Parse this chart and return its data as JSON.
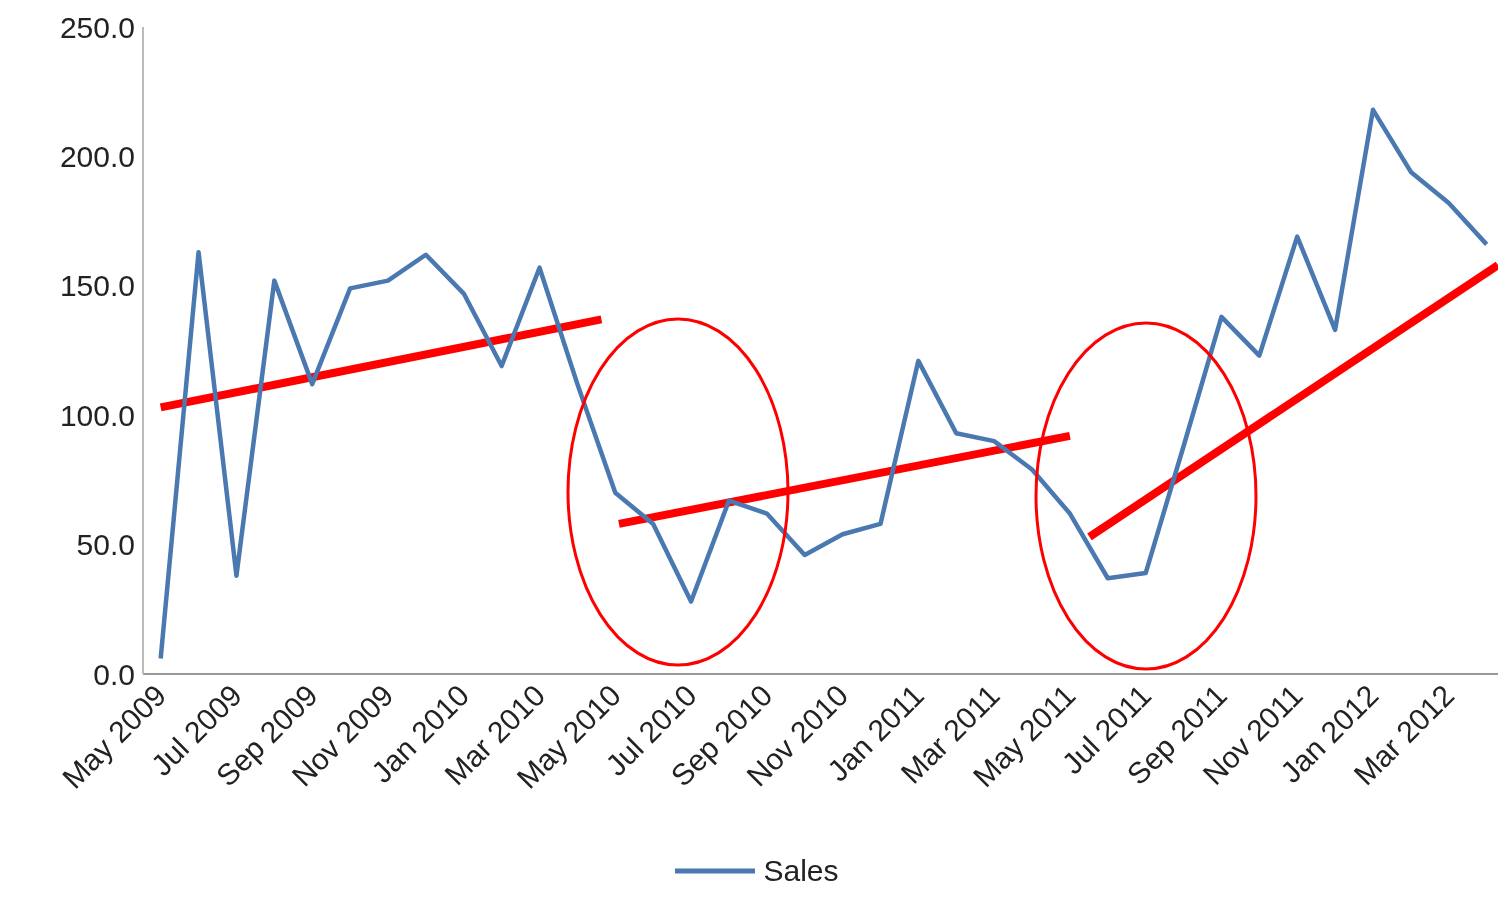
{
  "chart_data": {
    "type": "line",
    "x": [
      "2009-05",
      "2009-06",
      "2009-07",
      "2009-08",
      "2009-09",
      "2009-10",
      "2009-11",
      "2009-12",
      "2010-01",
      "2010-02",
      "2010-03",
      "2010-04",
      "2010-05",
      "2010-06",
      "2010-07",
      "2010-08",
      "2010-09",
      "2010-10",
      "2010-11",
      "2010-12",
      "2011-01",
      "2011-02",
      "2011-03",
      "2011-04",
      "2011-05",
      "2011-06",
      "2011-07",
      "2011-08",
      "2011-09",
      "2011-10",
      "2011-11",
      "2011-12",
      "2012-01",
      "2012-02",
      "2012-03",
      "2012-04"
    ],
    "series": [
      {
        "name": "Sales",
        "color": "#4a78b0",
        "values": [
          6,
          163,
          38,
          152,
          112,
          149,
          152,
          162,
          147,
          119,
          157,
          112,
          70,
          58,
          28,
          67,
          62,
          46,
          54,
          58,
          121,
          93,
          90,
          79,
          62,
          37,
          39,
          88,
          138,
          123,
          169,
          133,
          218,
          194,
          182,
          166
        ]
      },
      {
        "type": "line",
        "color": "#ff0000",
        "x": [
          "2009-05",
          "2010-04-20"
        ],
        "values": [
          103,
          137
        ]
      },
      {
        "type": "line",
        "color": "#ff0000",
        "x": [
          "2010-05-04",
          "2011-05"
        ],
        "values": [
          58,
          92
        ]
      },
      {
        "type": "line",
        "color": "#ff0000",
        "x": [
          "2011-05-17",
          "2012-04-10"
        ],
        "values": [
          53,
          158
        ]
      }
    ],
    "xlim": [
      "2009-04-17",
      "2012-04-10"
    ],
    "xticks": [
      {
        "value": "2009-05",
        "label": "May 2009"
      },
      {
        "value": "2009-07",
        "label": "Jul 2009"
      },
      {
        "value": "2009-09",
        "label": "Sep 2009"
      },
      {
        "value": "2009-11",
        "label": "Nov 2009"
      },
      {
        "value": "2010-01",
        "label": "Jan 2010"
      },
      {
        "value": "2010-03",
        "label": "Mar 2010"
      },
      {
        "value": "2010-05",
        "label": "May 2010"
      },
      {
        "value": "2010-07",
        "label": "Jul 2010"
      },
      {
        "value": "2010-09",
        "label": "Sep 2010"
      },
      {
        "value": "2010-11",
        "label": "Nov 2010"
      },
      {
        "value": "2011-01",
        "label": "Jan 2011"
      },
      {
        "value": "2011-03",
        "label": "Mar 2011"
      },
      {
        "value": "2011-05",
        "label": "May 2011"
      },
      {
        "value": "2011-07",
        "label": "Jul 2011"
      },
      {
        "value": "2011-09",
        "label": "Sep 2011"
      },
      {
        "value": "2011-11",
        "label": "Nov 2011"
      },
      {
        "value": "2012-01",
        "label": "Jan 2012"
      },
      {
        "value": "2012-03",
        "label": "Mar 2012"
      }
    ],
    "ylim": [
      0,
      250
    ],
    "yticks": [
      {
        "value": 0,
        "label": "0.0"
      },
      {
        "value": 50,
        "label": "50.0"
      },
      {
        "value": 100,
        "label": "100.0"
      },
      {
        "value": 150,
        "label": "150.0"
      },
      {
        "value": 200,
        "label": "200.0"
      },
      {
        "value": 250,
        "label": "250.0"
      }
    ],
    "grid": false,
    "legend": "bottom",
    "marker": "none",
    "line_style": "solid"
  }
}
